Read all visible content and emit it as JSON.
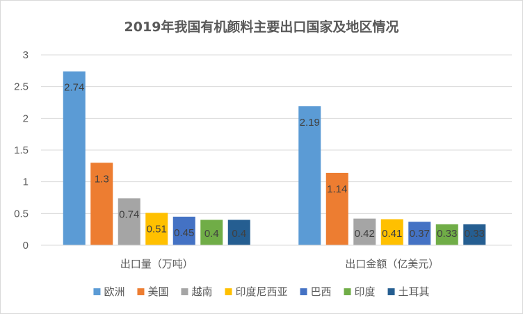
{
  "chart_data": {
    "type": "bar",
    "title": "2019年我国有机颜料主要出口国家及地区情况",
    "categories": [
      "出口量（万吨）",
      "出口金额（亿美元）"
    ],
    "ylim": [
      0,
      3
    ],
    "yticks": [
      0,
      0.5,
      1,
      1.5,
      2,
      2.5,
      3
    ],
    "ytick_labels": [
      "0",
      "0.5",
      "1",
      "1.5",
      "2",
      "2.5",
      "3"
    ],
    "grid": true,
    "legend_position": "bottom",
    "xlabel": "",
    "ylabel": "",
    "series": [
      {
        "name": "欧洲",
        "color": "#5b9bd5",
        "values": [
          2.74,
          2.19
        ],
        "labels": [
          "2.74",
          "2.19"
        ]
      },
      {
        "name": "美国",
        "color": "#ed7d31",
        "values": [
          1.3,
          1.14
        ],
        "labels": [
          "1.3",
          "1.14"
        ]
      },
      {
        "name": "越南",
        "color": "#a5a5a5",
        "values": [
          0.74,
          0.42
        ],
        "labels": [
          "0.74",
          "0.42"
        ]
      },
      {
        "name": "印度尼西亚",
        "color": "#ffc000",
        "values": [
          0.51,
          0.41
        ],
        "labels": [
          "0.51",
          "0.41"
        ]
      },
      {
        "name": "巴西",
        "color": "#4472c4",
        "values": [
          0.45,
          0.37
        ],
        "labels": [
          "0.45",
          "0.37"
        ]
      },
      {
        "name": "印度",
        "color": "#70ad47",
        "values": [
          0.4,
          0.33
        ],
        "labels": [
          "0.4",
          "0.33"
        ]
      },
      {
        "name": "土耳其",
        "color": "#255e91",
        "values": [
          0.4,
          0.33
        ],
        "labels": [
          "0.4",
          "0.33"
        ]
      }
    ]
  }
}
